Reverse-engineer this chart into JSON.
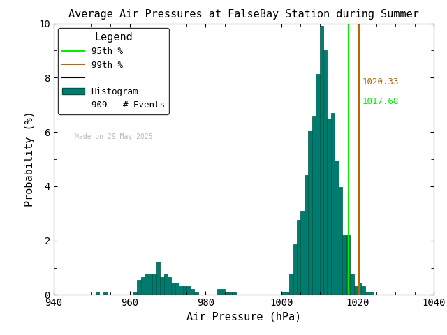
{
  "title": "Average Air Pressures at FalseBay Station during Summer",
  "xlabel": "Air Pressure (hPa)",
  "ylabel": "Probability (%)",
  "xlim": [
    940,
    1040
  ],
  "ylim": [
    0,
    10
  ],
  "xticks": [
    940,
    960,
    980,
    1000,
    1020,
    1040
  ],
  "yticks": [
    0,
    2,
    4,
    6,
    8,
    10
  ],
  "percentile_95": 1017.68,
  "percentile_99": 1020.33,
  "percentile_95_color": "#00ee00",
  "percentile_99_color": "#bb6600",
  "histogram_color": "#007b6e",
  "histogram_edge_color": "#005544",
  "n_events": 909,
  "watermark": "Made on 29 May 2025",
  "bin_edges": [
    951,
    952,
    953,
    954,
    961,
    962,
    962,
    963,
    963,
    964,
    964,
    965,
    965,
    966,
    966,
    967,
    967,
    968,
    968,
    969,
    969,
    970,
    970,
    971,
    971,
    972,
    972,
    973,
    973,
    974,
    974,
    975,
    975,
    976,
    976,
    977,
    977,
    978,
    983,
    984,
    984,
    985,
    985,
    986,
    986,
    987,
    987,
    988,
    1000,
    1001,
    1001,
    1002,
    1002,
    1003,
    1003,
    1004,
    1004,
    1005,
    1005,
    1006,
    1006,
    1007,
    1007,
    1008,
    1008,
    1009,
    1009,
    1010,
    1010,
    1011,
    1011,
    1012,
    1012,
    1013,
    1013,
    1014,
    1014,
    1015,
    1015,
    1016,
    1016,
    1017,
    1017,
    1018,
    1018,
    1019,
    1019,
    1020,
    1020,
    1021,
    1021,
    1022,
    1022,
    1023,
    1023,
    1024,
    1024,
    1025,
    1025,
    1026
  ],
  "bin_probs": [
    0.11,
    0.11,
    0.11,
    0.55,
    0.66,
    0.77,
    0.77,
    0.77,
    1.21,
    0.66,
    0.77,
    0.66,
    0.44,
    0.44,
    0.33,
    0.33,
    0.33,
    0.22,
    0.11,
    0.22,
    0.22,
    0.11,
    0.11,
    0.11,
    0.11,
    0.11,
    0.77,
    1.87,
    2.75,
    3.08,
    4.4,
    6.05,
    6.59,
    8.14,
    9.9,
    9.02,
    6.49,
    6.71,
    4.95,
    3.96,
    2.2,
    2.2,
    0.77,
    0.33,
    0.44,
    0.33,
    0.11,
    0.11
  ],
  "background_color": "#ffffff",
  "font_family": "monospace",
  "legend_95_color": "#aaaaaa",
  "legend_99_color": "#cc8844",
  "legend_black_color": "#000000"
}
